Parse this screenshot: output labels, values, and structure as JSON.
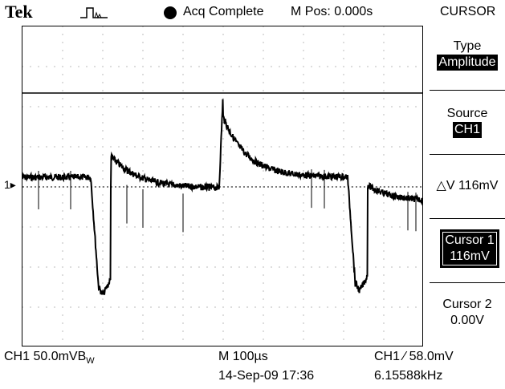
{
  "header": {
    "brand": "Tek",
    "acq_status": "Acq Complete",
    "m_pos": "M Pos: 0.000s",
    "menu_title": "CURSOR"
  },
  "menu": {
    "type_label": "Type",
    "type_value": "Amplitude",
    "source_label": "Source",
    "source_value": "CH1",
    "delta_v": "△V 116mV",
    "cursor1_label": "Cursor 1",
    "cursor1_value": "116mV",
    "cursor2_label": "Cursor 2",
    "cursor2_value": "0.00V"
  },
  "footer": {
    "ch1_scale": "CH1  50.0mVB",
    "bw_suffix": "W",
    "timebase": "M 100µs",
    "trigger": "CH1 ∕ 58.0mV",
    "datetime": "14-Sep-09 17:36",
    "frequency": "6.15588kHz"
  },
  "markers": {
    "channel": "1▸",
    "trig_level": "◂",
    "trig_pos": "▼"
  },
  "colors": {
    "trace": "#000000",
    "background": "#ffffff"
  }
}
